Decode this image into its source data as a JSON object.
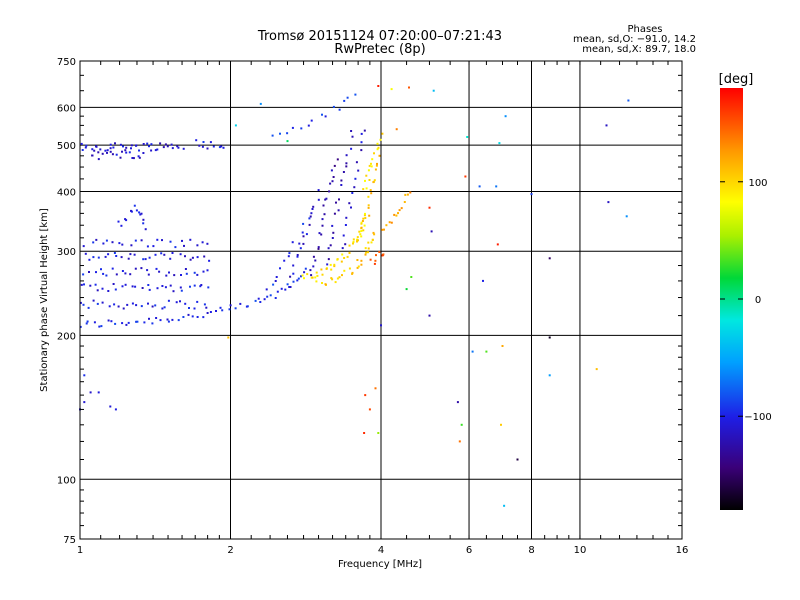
{
  "chart_data": {
    "type": "scatter",
    "title": "Tromsø 20151124 07:20:00–07:21:43",
    "subtitle": "RwPretec (8p)",
    "xlabel": "Frequency [MHz]",
    "ylabel": "Stationary phase Virtual Height [km]",
    "x_scale": "log",
    "y_scale": "log",
    "xlim": [
      1,
      16
    ],
    "ylim": [
      75,
      750
    ],
    "x_ticks": [
      1,
      2,
      4,
      6,
      8,
      10,
      16
    ],
    "x_tick_labels": [
      "1",
      "2",
      "4",
      "6",
      "8",
      "10",
      "16"
    ],
    "y_ticks": [
      75,
      100,
      200,
      300,
      400,
      500,
      600,
      750
    ],
    "y_tick_labels": [
      "75",
      "100",
      "200",
      "300",
      "400",
      "500",
      "600",
      "750"
    ],
    "grid": true,
    "stats": {
      "heading": "Phases",
      "line1": "mean, sd,O: −91.0, 14.2",
      "line2": "mean, sd,X:  89.7, 18.0"
    },
    "colorbar": {
      "label": "[deg]",
      "min": -180,
      "max": 180,
      "ticks": [
        100,
        0,
        -100
      ],
      "tick_labels": [
        "100",
        "0",
        "−100"
      ]
    },
    "traces": [
      {
        "f": [
          1.0,
          1.3,
          1.6,
          1.9,
          2.2,
          2.5,
          2.7,
          2.85
        ],
        "h": [
          210,
          214,
          218,
          224,
          232,
          245,
          262,
          280
        ],
        "phase": -98,
        "density": 55
      },
      {
        "f": [
          1.0,
          1.8
        ],
        "h": [
          232,
          232
        ],
        "phase": -104,
        "density": 28
      },
      {
        "f": [
          1.0,
          1.8
        ],
        "h": [
          252,
          252
        ],
        "phase": -104,
        "density": 28
      },
      {
        "f": [
          1.0,
          1.8
        ],
        "h": [
          272,
          272
        ],
        "phase": -104,
        "density": 28
      },
      {
        "f": [
          1.0,
          1.8
        ],
        "h": [
          292,
          292
        ],
        "phase": -104,
        "density": 28
      },
      {
        "f": [
          1.0,
          1.8
        ],
        "h": [
          312,
          312
        ],
        "phase": -104,
        "density": 24
      },
      {
        "f": [
          1.2,
          1.3,
          1.35
        ],
        "h": [
          340,
          370,
          335
        ],
        "phase": -108,
        "density": 14
      },
      {
        "f": [
          1.0,
          1.6
        ],
        "h": [
          495,
          498
        ],
        "phase": -110,
        "density": 40
      },
      {
        "f": [
          1.05,
          1.35
        ],
        "h": [
          475,
          480
        ],
        "phase": -108,
        "density": 18
      },
      {
        "f": [
          1.7,
          1.95
        ],
        "h": [
          505,
          495
        ],
        "phase": -102,
        "density": 10
      },
      {
        "f": [
          2.45,
          2.95,
          3.3,
          3.55
        ],
        "h": [
          520,
          565,
          600,
          640
        ],
        "phase": -95,
        "density": 14
      },
      {
        "f": [
          2.35,
          2.85
        ],
        "h": [
          240,
          345
        ],
        "phase": -95,
        "density": 14
      },
      {
        "f": [
          2.6,
          3.0
        ],
        "h": [
          250,
          400
        ],
        "phase": -112,
        "density": 18
      },
      {
        "f": [
          2.9,
          3.25
        ],
        "h": [
          265,
          470
        ],
        "phase": -125,
        "density": 22
      },
      {
        "f": [
          3.1,
          3.5
        ],
        "h": [
          280,
          530
        ],
        "phase": -118,
        "density": 20
      },
      {
        "f": [
          3.35,
          3.7
        ],
        "h": [
          300,
          540
        ],
        "phase": -112,
        "density": 16
      },
      {
        "f": [
          2.8,
          3.0,
          3.2,
          3.35,
          3.5,
          3.65,
          3.75
        ],
        "h": [
          262,
          270,
          280,
          292,
          308,
          330,
          355
        ],
        "phase": 95,
        "density": 40
      },
      {
        "f": [
          3.0,
          3.3,
          3.55,
          3.75,
          3.9
        ],
        "h": [
          258,
          265,
          275,
          300,
          330
        ],
        "phase": 104,
        "density": 30
      },
      {
        "f": [
          3.6,
          3.75,
          3.85,
          3.95
        ],
        "h": [
          310,
          360,
          420,
          470
        ],
        "phase": 110,
        "density": 20
      },
      {
        "f": [
          3.7,
          3.85,
          4.0
        ],
        "h": [
          400,
          460,
          520
        ],
        "phase": 92,
        "density": 16
      },
      {
        "f": [
          4.0,
          4.25,
          4.45,
          4.55
        ],
        "h": [
          330,
          350,
          380,
          400
        ],
        "phase": 120,
        "density": 14
      },
      {
        "f": [
          3.85,
          4.05
        ],
        "h": [
          285,
          300
        ],
        "phase": 155,
        "density": 8
      }
    ],
    "points": [
      {
        "f": 1.0,
        "h": 140,
        "phase": -110
      },
      {
        "f": 1.02,
        "h": 145,
        "phase": -110
      },
      {
        "f": 1.05,
        "h": 152,
        "phase": -112
      },
      {
        "f": 1.09,
        "h": 152,
        "phase": -105
      },
      {
        "f": 1.15,
        "h": 142,
        "phase": -108
      },
      {
        "f": 1.18,
        "h": 140,
        "phase": -102
      },
      {
        "f": 1.02,
        "h": 165,
        "phase": -95
      },
      {
        "f": 1.98,
        "h": 198,
        "phase": 110
      },
      {
        "f": 2.05,
        "h": 550,
        "phase": -30
      },
      {
        "f": 2.3,
        "h": 610,
        "phase": -60
      },
      {
        "f": 2.6,
        "h": 510,
        "phase": 10
      },
      {
        "f": 3.8,
        "h": 140,
        "phase": 155
      },
      {
        "f": 3.9,
        "h": 155,
        "phase": 140
      },
      {
        "f": 3.95,
        "h": 125,
        "phase": 50
      },
      {
        "f": 3.7,
        "h": 125,
        "phase": 165
      },
      {
        "f": 3.72,
        "h": 150,
        "phase": 160
      },
      {
        "f": 4.0,
        "h": 210,
        "phase": -110
      },
      {
        "f": 4.5,
        "h": 250,
        "phase": 20
      },
      {
        "f": 4.6,
        "h": 265,
        "phase": 35
      },
      {
        "f": 5.0,
        "h": 220,
        "phase": -125
      },
      {
        "f": 4.3,
        "h": 540,
        "phase": 135
      },
      {
        "f": 4.2,
        "h": 655,
        "phase": 80
      },
      {
        "f": 3.95,
        "h": 665,
        "phase": 170
      },
      {
        "f": 4.55,
        "h": 660,
        "phase": 150
      },
      {
        "f": 5.0,
        "h": 370,
        "phase": 165
      },
      {
        "f": 5.05,
        "h": 330,
        "phase": -120
      },
      {
        "f": 5.1,
        "h": 650,
        "phase": -40
      },
      {
        "f": 5.7,
        "h": 145,
        "phase": -125
      },
      {
        "f": 5.8,
        "h": 130,
        "phase": 30
      },
      {
        "f": 5.75,
        "h": 120,
        "phase": 140
      },
      {
        "f": 5.9,
        "h": 430,
        "phase": 160
      },
      {
        "f": 5.95,
        "h": 520,
        "phase": -15
      },
      {
        "f": 6.1,
        "h": 185,
        "phase": -70
      },
      {
        "f": 6.3,
        "h": 410,
        "phase": -80
      },
      {
        "f": 6.4,
        "h": 260,
        "phase": -100
      },
      {
        "f": 6.5,
        "h": 185,
        "phase": 35
      },
      {
        "f": 6.8,
        "h": 410,
        "phase": -70
      },
      {
        "f": 6.85,
        "h": 310,
        "phase": 170
      },
      {
        "f": 6.9,
        "h": 505,
        "phase": -25
      },
      {
        "f": 6.95,
        "h": 130,
        "phase": 105
      },
      {
        "f": 7.0,
        "h": 190,
        "phase": 120
      },
      {
        "f": 7.1,
        "h": 575,
        "phase": -60
      },
      {
        "f": 7.05,
        "h": 88,
        "phase": -40
      },
      {
        "f": 7.5,
        "h": 110,
        "phase": -160
      },
      {
        "f": 8.0,
        "h": 395,
        "phase": -90
      },
      {
        "f": 8.7,
        "h": 165,
        "phase": -55
      },
      {
        "f": 8.7,
        "h": 290,
        "phase": -150
      },
      {
        "f": 8.7,
        "h": 198,
        "phase": -170
      },
      {
        "f": 10.8,
        "h": 170,
        "phase": 110
      },
      {
        "f": 11.3,
        "h": 550,
        "phase": -115
      },
      {
        "f": 11.4,
        "h": 380,
        "phase": -115
      },
      {
        "f": 12.4,
        "h": 355,
        "phase": -60
      },
      {
        "f": 12.5,
        "h": 620,
        "phase": -80
      }
    ]
  }
}
